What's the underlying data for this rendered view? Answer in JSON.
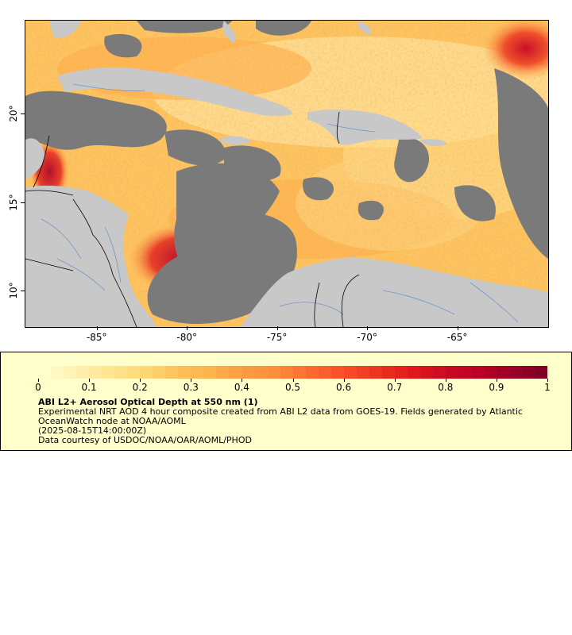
{
  "map": {
    "x_ticks": [
      {
        "label": "-85°",
        "lon": -85
      },
      {
        "label": "-80°",
        "lon": -80
      },
      {
        "label": "-75°",
        "lon": -75
      },
      {
        "label": "-70°",
        "lon": -70
      },
      {
        "label": "-65°",
        "lon": -65
      }
    ],
    "y_ticks": [
      {
        "label": "20°",
        "lat": 20
      },
      {
        "label": "15°",
        "lat": 15
      },
      {
        "label": "10°",
        "lat": 10
      }
    ],
    "lon_range": [
      -89,
      -60
    ],
    "lat_range": [
      8,
      25.3
    ]
  },
  "legend": {
    "colorbar_ticks": [
      "0",
      "0.1",
      "0.2",
      "0.3",
      "0.4",
      "0.5",
      "0.6",
      "0.7",
      "0.8",
      "0.9",
      "1"
    ],
    "colorbar_min": 0,
    "colorbar_max": 1,
    "title": "ABI L2+ Aerosol Optical Depth at 550 nm (1)",
    "line1": "Experimental NRT AOD 4 hour composite created from ABI L2 data from GOES-19. Fields generated by Atlantic OceanWatch node at NOAA/AOML",
    "line2": "(2025-08-15T14:00:00Z)",
    "line3": "Data courtesy of USDOC/NOAA/OAR/AOML/PHOD"
  },
  "colors": {
    "land": "#c8c8c8",
    "nodata": "#7a7a7a",
    "river": "#6f96c6",
    "colormap": [
      "#ffffcc",
      "#fff0b0",
      "#ffe590",
      "#fed976",
      "#fec25a",
      "#feb24c",
      "#fd9c42",
      "#fd8d3c",
      "#fc6a31",
      "#fc4e2a",
      "#ec3520",
      "#e31a1c",
      "#cc0c22",
      "#bd0026",
      "#9e0027",
      "#800026"
    ]
  }
}
